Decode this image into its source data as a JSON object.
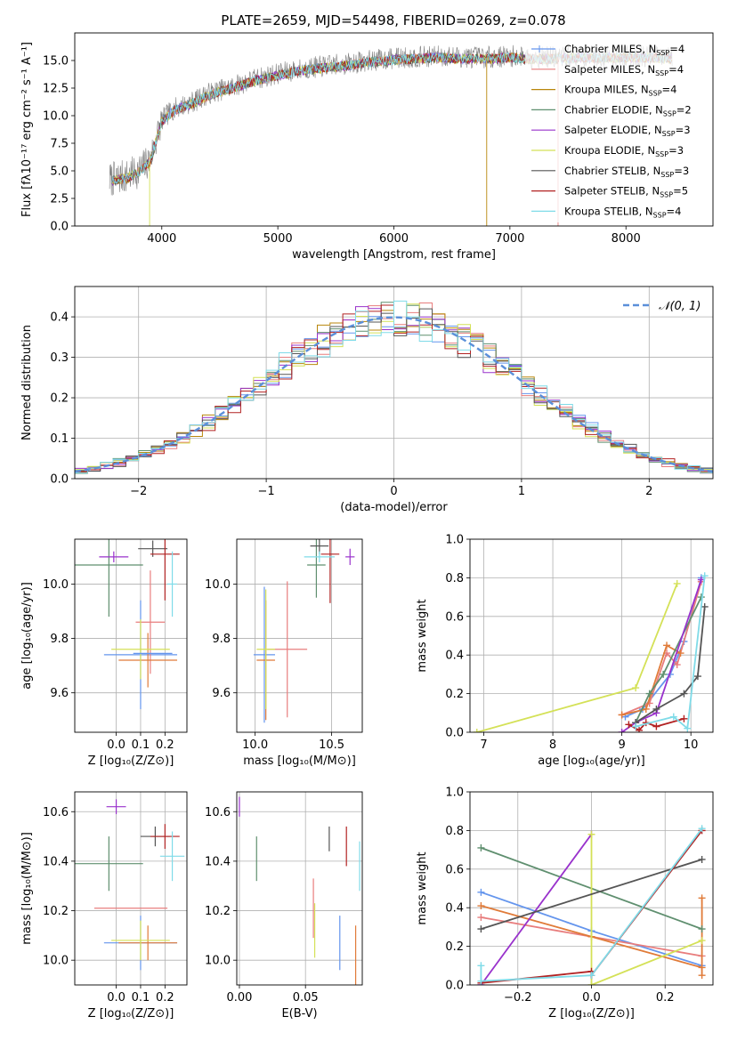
{
  "figure_title": "PLATE=2659, MJD=54498, FIBERID=0269, z=0.078",
  "chart_data": [
    {
      "id": "spectrum",
      "type": "line",
      "title": "PLATE=2659, MJD=54498, FIBERID=0269, z=0.078",
      "xlabel": "wavelength [Angstrom, rest frame]",
      "ylabel": "Flux [fλ10⁻¹⁷ erg cm⁻² s⁻¹ A⁻¹]",
      "xlim": [
        3250,
        8750
      ],
      "ylim": [
        0,
        17.5
      ],
      "xticks": [
        4000,
        5000,
        6000,
        7000,
        8000
      ],
      "xtick_labels": [
        "4000",
        "5000",
        "6000",
        "7000",
        "8000"
      ],
      "yticks": [
        0,
        2.5,
        5,
        7.5,
        10,
        12.5,
        15
      ],
      "ytick_labels": [
        "0.0",
        "2.5",
        "5.0",
        "7.5",
        "10.0",
        "12.5",
        "15.0"
      ],
      "grid": false,
      "legend_position": "right",
      "data_x_range": [
        3550,
        8400
      ],
      "continuum": {
        "x": [
          3550,
          3700,
          3800,
          3900,
          4000,
          4100,
          4200,
          4300,
          4400,
          4600,
          4800,
          5000,
          5200,
          5400,
          5600,
          5800,
          6000,
          6200,
          6400,
          6600,
          6800,
          7000,
          7200,
          7400,
          7600,
          7800,
          8000,
          8200,
          8400
        ],
        "y": [
          4.2,
          4.5,
          5.0,
          6.0,
          9.6,
          10.6,
          11.0,
          11.4,
          12.0,
          12.6,
          13.3,
          13.8,
          14.2,
          14.5,
          14.7,
          15.0,
          15.2,
          15.3,
          15.4,
          15.3,
          15.3,
          15.4,
          15.3,
          15.3,
          15.4,
          15.4,
          15.4,
          15.4,
          15.3
        ]
      },
      "series": [
        {
          "name": "Chabrier MILES, N",
          "sub": "SSP",
          "suffix": "=4",
          "color": "#6495ed",
          "marker": "+"
        },
        {
          "name": "Salpeter MILES, N",
          "sub": "SSP",
          "suffix": "=4",
          "color": "#e87d7d"
        },
        {
          "name": "Kroupa MILES, N",
          "sub": "SSP",
          "suffix": "=4",
          "color": "#b8860b"
        },
        {
          "name": "Chabrier ELODIE, N",
          "sub": "SSP",
          "suffix": "=2",
          "color": "#5f8f6f"
        },
        {
          "name": "Salpeter ELODIE, N",
          "sub": "SSP",
          "suffix": "=3",
          "color": "#9932cc"
        },
        {
          "name": "Kroupa ELODIE, N",
          "sub": "SSP",
          "suffix": "=3",
          "color": "#d4e157"
        },
        {
          "name": "Chabrier STELIB, N",
          "sub": "SSP",
          "suffix": "=3",
          "color": "#555555"
        },
        {
          "name": "Salpeter STELIB, N",
          "sub": "SSP",
          "suffix": "=5",
          "color": "#b22222"
        },
        {
          "name": "Kroupa STELIB, N",
          "sub": "SSP",
          "suffix": "=4",
          "color": "#7fdbe8"
        }
      ]
    },
    {
      "id": "residuals",
      "type": "step",
      "xlabel": "(data-model)/error",
      "ylabel": "Normed distribution",
      "xlim": [
        -2.5,
        2.5
      ],
      "ylim": [
        0,
        0.475
      ],
      "xticks": [
        -2,
        -1,
        0,
        1,
        2
      ],
      "xtick_labels": [
        "−2",
        "−1",
        "0",
        "1",
        "2"
      ],
      "yticks": [
        0,
        0.1,
        0.2,
        0.3,
        0.4
      ],
      "ytick_labels": [
        "0.0",
        "0.1",
        "0.2",
        "0.3",
        "0.4"
      ],
      "grid": true,
      "bin_width": 0.1,
      "bin_start": -2.5,
      "legend_position": "top-right",
      "legend_label": "𝒩(0, 1)",
      "gaussian_color": "#5b8fd9",
      "series_colors": [
        "#6495ed",
        "#e87d7d",
        "#b8860b",
        "#5f8f6f",
        "#9932cc",
        "#d4e157",
        "#555555",
        "#b22222",
        "#7fdbe8"
      ]
    },
    {
      "id": "z-age",
      "type": "errorbar",
      "xlabel": "Z [log₁₀(Z/Z⊙)]",
      "ylabel": "age  [log₁₀(age/yr)]",
      "xlim": [
        -0.17,
        0.29
      ],
      "ylim": [
        9.455,
        10.165
      ],
      "xticks": [
        0.0,
        0.1,
        0.2
      ],
      "xtick_labels": [
        "0.0",
        "0.1",
        "0.2"
      ],
      "yticks": [
        9.6,
        9.8,
        10.0
      ],
      "ytick_labels": [
        "9.6",
        "9.8",
        "10.0"
      ],
      "grid": true,
      "points": [
        {
          "color": "#6495ed",
          "x": 0.1,
          "xerr": 0.15,
          "y": 9.74,
          "yerr": 0.2
        },
        {
          "color": "#e87d7d",
          "x": 0.14,
          "xerr": 0.06,
          "y": 9.86,
          "yerr": 0.19
        },
        {
          "color": "#e07b39",
          "x": 0.13,
          "xerr": 0.12,
          "y": 9.72,
          "yerr": 0.1
        },
        {
          "color": "#5f8f6f",
          "x": -0.03,
          "xerr": 0.14,
          "y": 10.07,
          "yerr": 0.19
        },
        {
          "color": "#9932cc",
          "x": -0.01,
          "xerr": 0.06,
          "y": 10.1,
          "yerr": 0.02
        },
        {
          "color": "#d4e157",
          "x": 0.1,
          "xerr": 0.12,
          "y": 9.76,
          "yerr": 0.11
        },
        {
          "color": "#555555",
          "x": 0.15,
          "xerr": 0.06,
          "y": 10.13,
          "yerr": 0.03
        },
        {
          "color": "#b22222",
          "x": 0.2,
          "xerr": 0.06,
          "y": 10.11,
          "yerr": 0.17
        },
        {
          "color": "#7fdbe8",
          "x": 0.23,
          "xerr": 0.02,
          "y": 10.0,
          "yerr": 0.12
        },
        {
          "color": "#6495ed",
          "x": 0.15,
          "xerr": 0.08,
          "y": 9.745,
          "yerr": 0.0
        }
      ]
    },
    {
      "id": "mass-age",
      "type": "errorbar",
      "xlabel": "mass [log₁₀(M/M⊙)]",
      "ylabel": "",
      "xlim": [
        9.88,
        10.7
      ],
      "ylim": [
        9.455,
        10.165
      ],
      "xticks": [
        10.0,
        10.5
      ],
      "xtick_labels": [
        "10.0",
        "10.5"
      ],
      "yticks": [
        9.6,
        9.8,
        10.0
      ],
      "ytick_labels": [
        "9.6",
        "9.8",
        "10.0"
      ],
      "grid": true,
      "points": [
        {
          "color": "#6495ed",
          "x": 10.06,
          "xerr": 0.07,
          "y": 9.74,
          "yerr": 0.25
        },
        {
          "color": "#e87d7d",
          "x": 10.21,
          "xerr": 0.13,
          "y": 9.76,
          "yerr": 0.25
        },
        {
          "color": "#e07b39",
          "x": 10.07,
          "xerr": 0.06,
          "y": 9.72,
          "yerr": 0.22
        },
        {
          "color": "#5f8f6f",
          "x": 10.4,
          "xerr": 0.06,
          "y": 10.07,
          "yerr": 0.12
        },
        {
          "color": "#9932cc",
          "x": 10.62,
          "xerr": 0.03,
          "y": 10.1,
          "yerr": 0.03
        },
        {
          "color": "#d4e157",
          "x": 10.07,
          "xerr": 0.06,
          "y": 9.76,
          "yerr": 0.22
        },
        {
          "color": "#555555",
          "x": 10.42,
          "xerr": 0.06,
          "y": 10.14,
          "yerr": 0.03
        },
        {
          "color": "#b22222",
          "x": 10.49,
          "xerr": 0.06,
          "y": 10.11,
          "yerr": 0.18
        },
        {
          "color": "#7fdbe8",
          "x": 10.42,
          "xerr": 0.1,
          "y": 10.1,
          "yerr": 0.02
        }
      ]
    },
    {
      "id": "weight-age",
      "type": "line",
      "xlabel": "age  [log₁₀(age/yr)]",
      "ylabel": "mass weight",
      "xlim": [
        6.8,
        10.32
      ],
      "ylim": [
        0,
        1.0
      ],
      "xticks": [
        7,
        8,
        9,
        10
      ],
      "xtick_labels": [
        "7",
        "8",
        "9",
        "10"
      ],
      "yticks": [
        0,
        0.2,
        0.4,
        0.6,
        0.8,
        1.0
      ],
      "ytick_labels": [
        "0.0",
        "0.2",
        "0.4",
        "0.6",
        "0.8",
        "1.0"
      ],
      "grid": true,
      "series": [
        {
          "color": "#6495ed",
          "x": [
            9.05,
            9.3,
            9.7,
            9.9,
            10.15
          ],
          "y": [
            0.08,
            0.12,
            0.3,
            0.47,
            0.8
          ]
        },
        {
          "color": "#e87d7d",
          "x": [
            9.0,
            9.4,
            9.65,
            9.8,
            10.15
          ],
          "y": [
            0.09,
            0.15,
            0.41,
            0.35,
            0.78
          ]
        },
        {
          "color": "#e07b39",
          "x": [
            9.0,
            9.35,
            9.65,
            9.85
          ],
          "y": [
            0.09,
            0.12,
            0.45,
            0.41
          ]
        },
        {
          "color": "#5f8f6f",
          "x": [
            9.2,
            9.4,
            9.6,
            10.15
          ],
          "y": [
            0.05,
            0.2,
            0.3,
            0.7
          ]
        },
        {
          "color": "#9932cc",
          "x": [
            9.0,
            9.2,
            9.5,
            10.15
          ],
          "y": [
            0.0,
            0.05,
            0.1,
            0.79
          ]
        },
        {
          "color": "#d4e157",
          "x": [
            6.9,
            9.2,
            9.8
          ],
          "y": [
            0.0,
            0.23,
            0.77
          ]
        },
        {
          "color": "#555555",
          "x": [
            9.2,
            9.5,
            9.9,
            10.1,
            10.2
          ],
          "y": [
            0.05,
            0.12,
            0.2,
            0.29,
            0.65
          ]
        },
        {
          "color": "#b22222",
          "x": [
            9.1,
            9.25,
            9.35,
            9.5,
            9.9
          ],
          "y": [
            0.04,
            0.01,
            0.05,
            0.03,
            0.07
          ]
        },
        {
          "color": "#7fdbe8",
          "x": [
            9.2,
            9.75,
            9.95,
            10.2
          ],
          "y": [
            0.03,
            0.08,
            0.02,
            0.81
          ]
        }
      ]
    },
    {
      "id": "z-mass",
      "type": "errorbar",
      "xlabel": "Z [log₁₀(Z/Z⊙)]",
      "ylabel": "mass [log₁₀(M/M⊙)]",
      "xlim": [
        -0.17,
        0.29
      ],
      "ylim": [
        9.9,
        10.68
      ],
      "xticks": [
        0.0,
        0.1,
        0.2
      ],
      "xtick_labels": [
        "0.0",
        "0.1",
        "0.2"
      ],
      "yticks": [
        10.0,
        10.2,
        10.4,
        10.6
      ],
      "ytick_labels": [
        "10.0",
        "10.2",
        "10.4",
        "10.6"
      ],
      "grid": true,
      "points": [
        {
          "color": "#6495ed",
          "x": 0.1,
          "xerr": 0.15,
          "y": 10.07,
          "yerr": 0.11
        },
        {
          "color": "#e87d7d",
          "x": 0.06,
          "xerr": 0.15,
          "y": 10.21,
          "yerr": 0.0
        },
        {
          "color": "#e07b39",
          "x": 0.13,
          "xerr": 0.12,
          "y": 10.07,
          "yerr": 0.07
        },
        {
          "color": "#5f8f6f",
          "x": -0.03,
          "xerr": 0.14,
          "y": 10.39,
          "yerr": 0.11
        },
        {
          "color": "#9932cc",
          "x": 0.0,
          "xerr": 0.04,
          "y": 10.62,
          "yerr": 0.03
        },
        {
          "color": "#d4e157",
          "x": 0.1,
          "xerr": 0.12,
          "y": 10.08,
          "yerr": 0.08
        },
        {
          "color": "#555555",
          "x": 0.16,
          "xerr": 0.06,
          "y": 10.5,
          "yerr": 0.04
        },
        {
          "color": "#b22222",
          "x": 0.2,
          "xerr": 0.06,
          "y": 10.5,
          "yerr": 0.05
        },
        {
          "color": "#7fdbe8",
          "x": 0.23,
          "xerr": 0.05,
          "y": 10.42,
          "yerr": 0.1
        }
      ]
    },
    {
      "id": "ebv-mass",
      "type": "errorbar",
      "xlabel": "E(B-V)",
      "ylabel": "",
      "xlim": [
        -0.002,
        0.093
      ],
      "ylim": [
        9.9,
        10.68
      ],
      "xticks": [
        0.0,
        0.05
      ],
      "xtick_labels": [
        "0.00",
        "0.05"
      ],
      "yticks": [
        10.0,
        10.2,
        10.4,
        10.6
      ],
      "ytick_labels": [
        "10.0",
        "10.2",
        "10.4",
        "10.6"
      ],
      "grid": true,
      "points": [
        {
          "color": "#6495ed",
          "x": 0.076,
          "xerr": 0,
          "y": 10.07,
          "yerr": 0.11
        },
        {
          "color": "#e87d7d",
          "x": 0.056,
          "xerr": 0,
          "y": 10.21,
          "yerr": 0.12
        },
        {
          "color": "#e07b39",
          "x": 0.088,
          "xerr": 0,
          "y": 10.0,
          "yerr": 0.14
        },
        {
          "color": "#5f8f6f",
          "x": 0.013,
          "xerr": 0,
          "y": 10.41,
          "yerr": 0.09
        },
        {
          "color": "#9932cc",
          "x": 0.0,
          "xerr": 0,
          "y": 10.62,
          "yerr": 0.04
        },
        {
          "color": "#d4e157",
          "x": 0.057,
          "xerr": 0,
          "y": 10.12,
          "yerr": 0.11
        },
        {
          "color": "#555555",
          "x": 0.068,
          "xerr": 0,
          "y": 10.49,
          "yerr": 0.05
        },
        {
          "color": "#b22222",
          "x": 0.081,
          "xerr": 0,
          "y": 10.46,
          "yerr": 0.08
        },
        {
          "color": "#7fdbe8",
          "x": 0.091,
          "xerr": 0,
          "y": 10.38,
          "yerr": 0.1
        }
      ]
    },
    {
      "id": "weight-z",
      "type": "line",
      "xlabel": "Z [log₁₀(Z/Z⊙)]",
      "ylabel": "mass weight",
      "xlim": [
        -0.33,
        0.33
      ],
      "ylim": [
        0,
        1.0
      ],
      "xticks": [
        -0.2,
        0.0,
        0.2
      ],
      "xtick_labels": [
        "−0.2",
        "0.0",
        "0.2"
      ],
      "yticks": [
        0,
        0.2,
        0.4,
        0.6,
        0.8,
        1.0
      ],
      "ytick_labels": [
        "0.0",
        "0.2",
        "0.4",
        "0.6",
        "0.8",
        "1.0"
      ],
      "grid": true,
      "series": [
        {
          "color": "#6495ed",
          "x": [
            -0.3,
            0.0,
            0.3
          ],
          "y": [
            0.48,
            0.28,
            0.1
          ]
        },
        {
          "color": "#e87d7d",
          "x": [
            -0.3,
            0.0,
            0.3
          ],
          "y": [
            0.35,
            0.25,
            0.15
          ]
        },
        {
          "color": "#e07b39",
          "x": [
            -0.3,
            0.0,
            0.3,
            0.3,
            0.3
          ],
          "y": [
            0.41,
            0.25,
            0.09,
            0.45,
            0.05
          ]
        },
        {
          "color": "#5f8f6f",
          "x": [
            -0.3,
            0.3
          ],
          "y": [
            0.71,
            0.29
          ]
        },
        {
          "color": "#9932cc",
          "x": [
            -0.3,
            0.0
          ],
          "y": [
            0.0,
            0.78
          ]
        },
        {
          "color": "#d4e157",
          "x": [
            0.0,
            0.0,
            0.3
          ],
          "y": [
            0.78,
            0.0,
            0.23
          ]
        },
        {
          "color": "#555555",
          "x": [
            -0.3,
            0.3
          ],
          "y": [
            0.29,
            0.65
          ]
        },
        {
          "color": "#b22222",
          "x": [
            -0.3,
            0.0,
            0.0,
            0.3
          ],
          "y": [
            0.01,
            0.07,
            0.05,
            0.8
          ]
        },
        {
          "color": "#7fdbe8",
          "x": [
            -0.3,
            -0.3,
            0.0,
            0.3
          ],
          "y": [
            0.1,
            0.02,
            0.05,
            0.81
          ]
        }
      ]
    }
  ]
}
